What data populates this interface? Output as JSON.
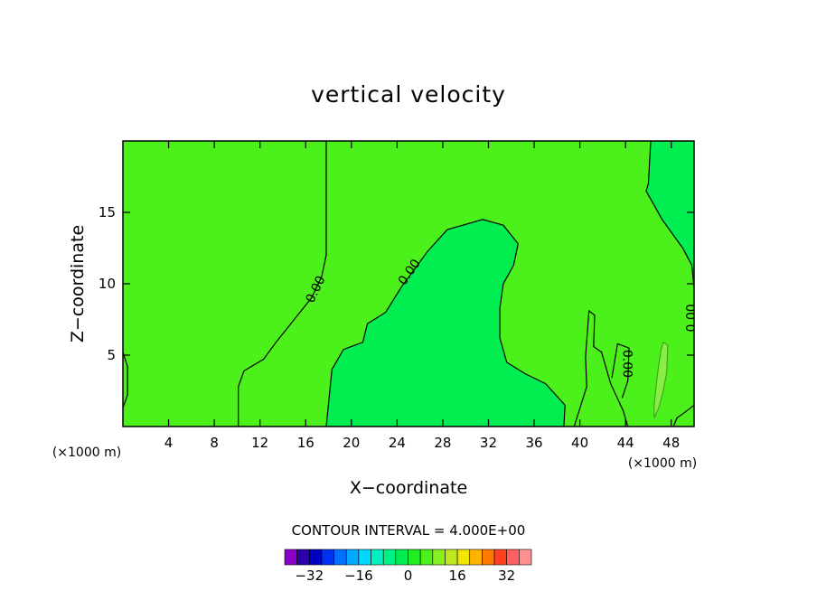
{
  "chart_data": {
    "type": "contour",
    "title": "vertical velocity",
    "xlabel": "X−coordinate",
    "ylabel": "Z−coordinate",
    "x_unit": "(×1000 m)",
    "x_unit_right": "(×1000 m)",
    "xlim": [
      0,
      50
    ],
    "ylim": [
      0,
      20
    ],
    "x_ticks": [
      4,
      8,
      12,
      16,
      20,
      24,
      28,
      32,
      36,
      40,
      44,
      48
    ],
    "y_ticks": [
      5,
      10,
      15
    ],
    "contour_interval_text": "CONTOUR INTERVAL = 4.000E+00",
    "contour_interval": 4,
    "contour_label_text": "0.00",
    "fill_colors": {
      "light_green": "#4cf01a",
      "mint_green": "#00ee50",
      "pale_green": "#88ee44"
    },
    "regions": [
      {
        "name": "left-upward-region",
        "level": "0 to 4",
        "color": "#4cf01a",
        "boundary": [
          [
            0,
            0
          ],
          [
            0,
            20
          ],
          [
            17.8,
            20
          ],
          [
            17.8,
            12
          ],
          [
            17.4,
            10.5
          ],
          [
            16.5,
            9
          ],
          [
            15,
            7.5
          ],
          [
            13.5,
            6
          ],
          [
            12.3,
            4.7
          ],
          [
            10.6,
            3.9
          ],
          [
            10.1,
            2.8
          ],
          [
            10.1,
            0
          ]
        ]
      },
      {
        "name": "central-downward-plume",
        "level": "-4 to 0",
        "color": "#00ee50",
        "boundary": [
          [
            17.8,
            0
          ],
          [
            18.3,
            4
          ],
          [
            19.3,
            5.4
          ],
          [
            21,
            5.9
          ],
          [
            21.4,
            7.2
          ],
          [
            23,
            8
          ],
          [
            24.4,
            9.8
          ],
          [
            26.7,
            12.3
          ],
          [
            28.4,
            13.8
          ],
          [
            31.5,
            14.5
          ],
          [
            33.3,
            14.1
          ],
          [
            34.6,
            12.8
          ],
          [
            34.2,
            11.3
          ],
          [
            33.3,
            10
          ],
          [
            33,
            8.3
          ],
          [
            33,
            6.2
          ],
          [
            33.6,
            4.5
          ],
          [
            35.2,
            3.7
          ],
          [
            37,
            3
          ],
          [
            38.7,
            1.5
          ],
          [
            38.6,
            0
          ]
        ]
      },
      {
        "name": "upper-right-downward-region",
        "level": "-4 to 0",
        "color": "#00ee50",
        "boundary": [
          [
            46.2,
            20
          ],
          [
            46,
            17
          ],
          [
            45.8,
            16.5
          ],
          [
            46.5,
            15.5
          ],
          [
            47.2,
            14.5
          ],
          [
            49,
            12.5
          ],
          [
            49.8,
            11.3
          ],
          [
            50,
            9.7
          ],
          [
            50,
            20
          ]
        ]
      },
      {
        "name": "right-strong-updraft",
        "level": "4 to 8",
        "color": "#88ee44",
        "boundary": [
          [
            47.3,
            5.9
          ],
          [
            47.7,
            5.7
          ],
          [
            47.6,
            3.8
          ],
          [
            47.3,
            2.5
          ],
          [
            46.9,
            1.3
          ],
          [
            46.5,
            0.6
          ],
          [
            46.5,
            1.5
          ],
          [
            46.7,
            3
          ],
          [
            46.9,
            4.3
          ],
          [
            47.1,
            5.3
          ]
        ]
      }
    ],
    "contour_lines": [
      {
        "name": "zero-contour-left",
        "label": "0.00",
        "points": [
          [
            17.8,
            20
          ],
          [
            17.8,
            12
          ],
          [
            17.4,
            10.5
          ],
          [
            16.5,
            9
          ],
          [
            15,
            7.5
          ],
          [
            13.5,
            6
          ],
          [
            12.3,
            4.7
          ],
          [
            10.6,
            3.9
          ],
          [
            10.1,
            2.8
          ],
          [
            10.1,
            0
          ]
        ]
      },
      {
        "name": "zero-contour-center",
        "label": "0.00",
        "points": [
          [
            17.8,
            0
          ],
          [
            18.3,
            4
          ],
          [
            19.3,
            5.4
          ],
          [
            21,
            5.9
          ],
          [
            21.4,
            7.2
          ],
          [
            23,
            8
          ],
          [
            24.4,
            9.8
          ],
          [
            26.7,
            12.3
          ],
          [
            28.4,
            13.8
          ],
          [
            31.5,
            14.5
          ],
          [
            33.3,
            14.1
          ],
          [
            34.6,
            12.8
          ],
          [
            34.2,
            11.3
          ],
          [
            33.3,
            10
          ],
          [
            33,
            8.3
          ],
          [
            33,
            6.2
          ],
          [
            33.6,
            4.5
          ],
          [
            35.2,
            3.7
          ],
          [
            37,
            3
          ],
          [
            38.7,
            1.5
          ],
          [
            38.6,
            0
          ]
        ]
      },
      {
        "name": "zero-contour-right",
        "label": "0.00",
        "points": [
          [
            46.2,
            20
          ],
          [
            46,
            17
          ],
          [
            45.8,
            16.5
          ],
          [
            46.5,
            15.5
          ],
          [
            47.2,
            14.5
          ],
          [
            49,
            12.5
          ],
          [
            49.8,
            11.3
          ],
          [
            50,
            9.7
          ]
        ]
      },
      {
        "name": "zero-contour-lower-right",
        "label": "0.00",
        "points": [
          [
            39.5,
            0
          ],
          [
            40.6,
            2.8
          ],
          [
            40.5,
            4.9
          ],
          [
            40.8,
            8.1
          ],
          [
            41.3,
            7.8
          ],
          [
            41.2,
            5.6
          ],
          [
            41.9,
            5.2
          ],
          [
            42.7,
            3
          ],
          [
            43.8,
            1.1
          ],
          [
            44.2,
            0
          ]
        ]
      },
      {
        "name": "zero-contour-small-lobe",
        "label": "",
        "points": [
          [
            42.8,
            3.4
          ],
          [
            43.3,
            5.8
          ],
          [
            44.3,
            5.5
          ],
          [
            44.2,
            3.2
          ],
          [
            43.7,
            2
          ]
        ]
      },
      {
        "name": "zero-contour-left-edge",
        "label": "",
        "points": [
          [
            0,
            5.2
          ],
          [
            0.4,
            4.2
          ],
          [
            0.4,
            2.2
          ],
          [
            0,
            1.3
          ]
        ]
      },
      {
        "name": "zero-contour-edge-right",
        "label": "",
        "points": [
          [
            50,
            1.5
          ],
          [
            49.2,
            1
          ],
          [
            48.5,
            0.6
          ],
          [
            48.2,
            0
          ]
        ]
      }
    ],
    "colorbar": {
      "tick_labels": [
        "−32",
        "−16",
        "0",
        "16",
        "32"
      ],
      "colors": [
        "#8a00c8",
        "#2a00a8",
        "#0000c0",
        "#0030f0",
        "#0070ff",
        "#00a8ff",
        "#00d8ff",
        "#00f0c0",
        "#00f088",
        "#00ee50",
        "#20ee20",
        "#4cf01a",
        "#88ee20",
        "#bce820",
        "#f0e600",
        "#ffb400",
        "#ff7800",
        "#ff4020",
        "#ff6060",
        "#ff9090"
      ]
    }
  }
}
